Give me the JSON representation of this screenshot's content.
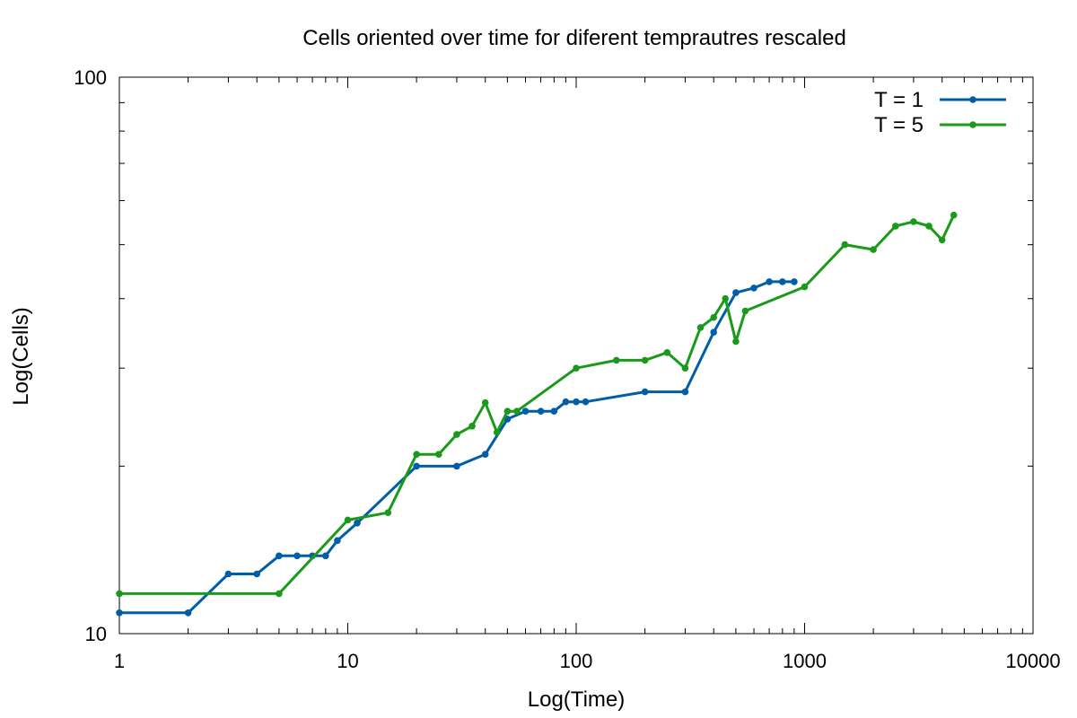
{
  "chart_data": {
    "type": "line",
    "title": "Cells oriented over time for diferent temprautres rescaled",
    "xlabel": "Log(Time)",
    "ylabel": "Log(Cells)",
    "xscale": "log",
    "yscale": "log",
    "xlim": [
      1,
      10000
    ],
    "ylim": [
      10,
      100
    ],
    "xticks": [
      1,
      10,
      100,
      1000,
      10000
    ],
    "xtick_labels": [
      "1",
      "10",
      "100",
      "1000",
      "10000"
    ],
    "yticks": [
      10,
      100
    ],
    "ytick_labels": [
      "10",
      "100"
    ],
    "grid": false,
    "legend_position": "top-right",
    "series": [
      {
        "name": "T = 1",
        "color": "#005ea8",
        "x": [
          1,
          2,
          3,
          4,
          5,
          6,
          7,
          8,
          9,
          11,
          20,
          30,
          40,
          50,
          60,
          70,
          80,
          90,
          100,
          110,
          200,
          300,
          400,
          500,
          600,
          700,
          800,
          900
        ],
        "y": [
          10.9,
          10.9,
          12.8,
          12.8,
          13.8,
          13.8,
          13.8,
          13.8,
          14.7,
          15.8,
          20.0,
          20.0,
          21.0,
          24.3,
          25.1,
          25.1,
          25.1,
          26.1,
          26.1,
          26.1,
          27.2,
          27.2,
          34.8,
          41.0,
          41.8,
          42.9,
          42.9,
          42.9
        ]
      },
      {
        "name": "T = 5",
        "color": "#1a9a1a",
        "x": [
          1,
          5,
          10,
          15,
          20,
          25,
          30,
          35,
          40,
          45,
          50,
          55,
          100,
          150,
          200,
          250,
          300,
          350,
          400,
          450,
          500,
          550,
          1000,
          1500,
          2000,
          2500,
          3000,
          3500,
          4000,
          4500
        ],
        "y": [
          11.8,
          11.8,
          16.0,
          16.5,
          21.0,
          21.0,
          22.8,
          23.6,
          26.0,
          23.0,
          25.1,
          25.1,
          30.0,
          31.0,
          31.0,
          32.0,
          30.0,
          35.5,
          37.0,
          40.0,
          33.5,
          38.0,
          42.0,
          50.0,
          49.0,
          54.0,
          55.0,
          54.0,
          51.0,
          56.5
        ]
      }
    ]
  }
}
